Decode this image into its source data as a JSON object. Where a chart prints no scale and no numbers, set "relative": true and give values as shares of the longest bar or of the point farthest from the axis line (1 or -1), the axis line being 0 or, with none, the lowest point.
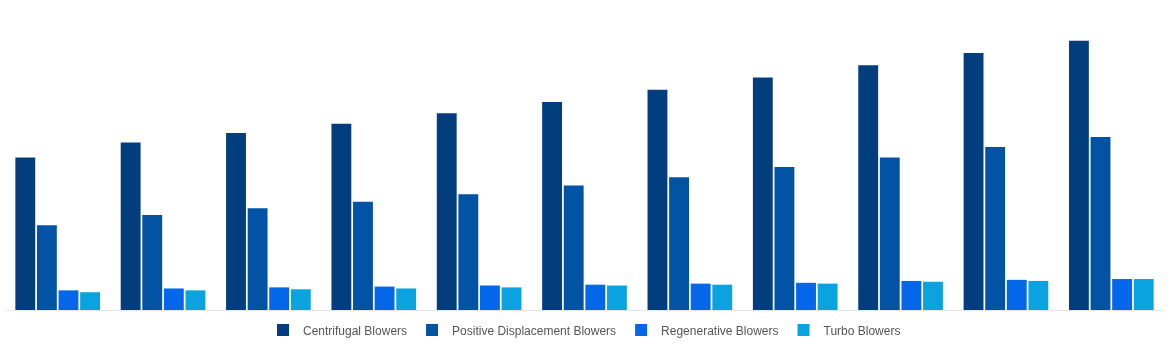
{
  "chart_data": {
    "type": "bar",
    "relative": true,
    "categories": [
      null,
      null,
      null,
      null,
      null,
      null,
      null,
      null,
      null,
      null,
      null
    ],
    "legend": "bottom",
    "series": [
      {
        "name": "Centrifugal Blowers",
        "color": "#023e7d",
        "values": [
          0.566,
          0.622,
          0.657,
          0.692,
          0.731,
          0.773,
          0.818,
          0.864,
          0.909,
          0.955,
          1
        ]
      },
      {
        "name": "Positive Displacement Blowers",
        "color": "#0353a4",
        "values": [
          0.315,
          0.353,
          0.378,
          0.402,
          0.43,
          0.462,
          0.493,
          0.531,
          0.566,
          0.605,
          0.643
        ]
      },
      {
        "name": "Regenerative Blowers",
        "color": "#0466e8",
        "values": [
          0.073,
          0.08,
          0.084,
          0.087,
          0.091,
          0.094,
          0.098,
          0.101,
          0.108,
          0.112,
          0.115
        ]
      },
      {
        "name": "Turbo Blowers",
        "color": "#0aa3e0",
        "values": [
          0.066,
          0.073,
          0.077,
          0.08,
          0.084,
          0.091,
          0.094,
          0.098,
          0.105,
          0.108,
          0.115
        ]
      }
    ]
  }
}
